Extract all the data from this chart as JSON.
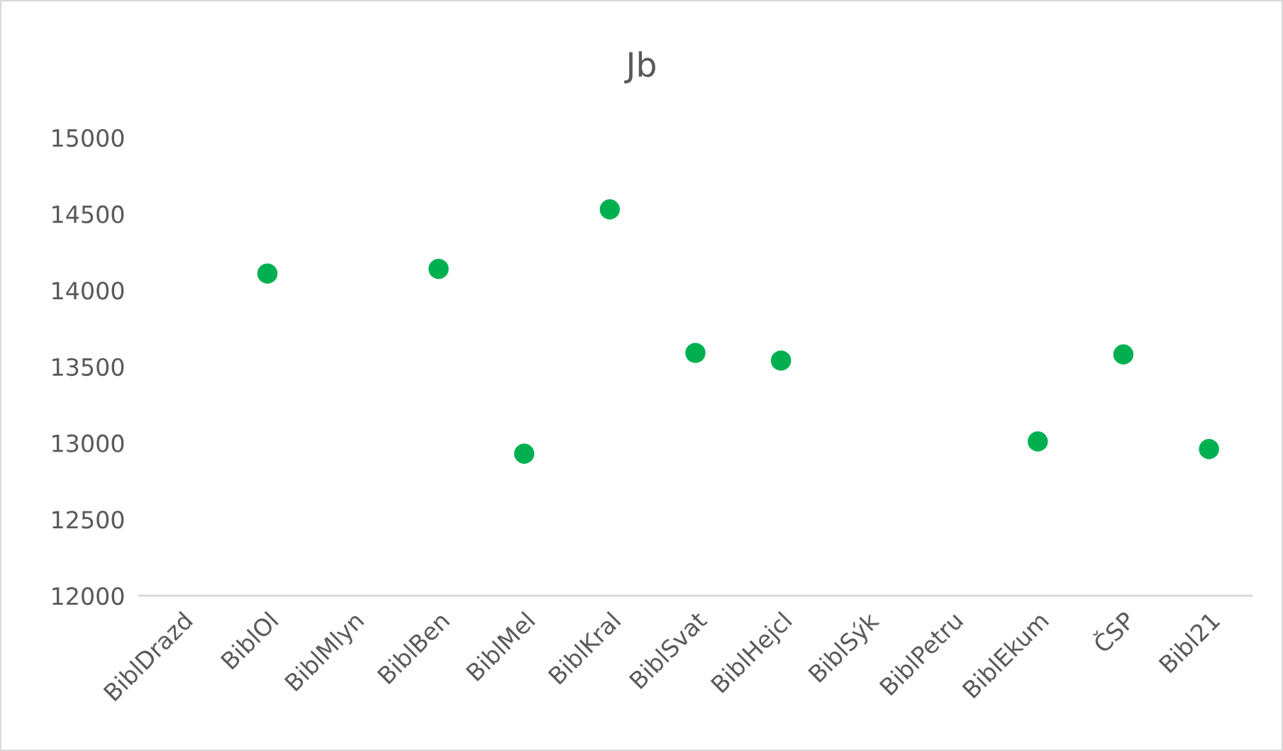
{
  "chart_data": {
    "type": "scatter",
    "title": "Jb",
    "categories": [
      "BiblDrazd",
      "BiblOl",
      "BiblMlyn",
      "BiblBen",
      "BiblMel",
      "BiblKral",
      "BiblSvat",
      "BiblHejcl",
      "BiblSýk",
      "BiblPetru",
      "BiblEkum",
      "ČSP",
      "Bibl21"
    ],
    "series": [
      {
        "color": "#00b050",
        "values": [
          null,
          14110,
          null,
          14140,
          12930,
          14530,
          13590,
          13540,
          null,
          null,
          13010,
          13580,
          12960
        ]
      }
    ],
    "ylim": [
      12000,
      15000
    ],
    "yticks": [
      12000,
      12500,
      13000,
      13500,
      14000,
      14500,
      15000
    ],
    "grid": false,
    "marker": "circle"
  }
}
